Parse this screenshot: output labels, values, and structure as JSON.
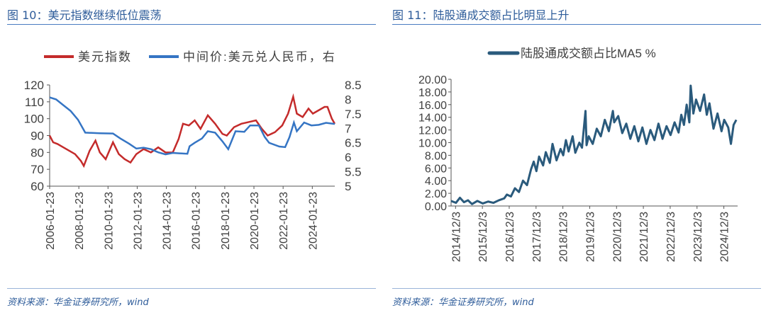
{
  "left": {
    "title": "图 10：美元指数继续低位震荡",
    "source": "资料来源：华金证券研究所，wind",
    "chart_data": {
      "type": "line",
      "title": "",
      "legend": {
        "placement": "top",
        "entries": [
          "美元指数",
          "中间价:美元兑人民币，右"
        ]
      },
      "x_ticks": [
        "2006-01-23",
        "2008-01-23",
        "2010-01-23",
        "2012-01-23",
        "2014-01-23",
        "2016-01-23",
        "2018-01-23",
        "2020-01-23",
        "2022-01-23",
        "2024-01-23"
      ],
      "y_left": {
        "lim": [
          60,
          120
        ],
        "ticks": [
          "60",
          "70",
          "80",
          "90",
          "100",
          "110",
          "120"
        ]
      },
      "y_right": {
        "lim": [
          5,
          8.5
        ],
        "ticks": [
          "5",
          "5.5",
          "6",
          "6.5",
          "7",
          "7.5",
          "8",
          "8.5"
        ]
      },
      "series": [
        {
          "name": "美元指数",
          "color": "#c42b2b",
          "axis": "left",
          "x": [
            2006.06,
            2006.3,
            2006.6,
            2007.0,
            2007.4,
            2007.8,
            2008.2,
            2008.4,
            2008.8,
            2009.2,
            2009.5,
            2009.9,
            2010.4,
            2010.8,
            2011.2,
            2011.6,
            2012.0,
            2012.5,
            2013.0,
            2013.5,
            2014.0,
            2014.5,
            2014.9,
            2015.2,
            2015.6,
            2016.0,
            2016.4,
            2016.9,
            2017.4,
            2017.9,
            2018.2,
            2018.7,
            2019.2,
            2019.7,
            2020.2,
            2020.6,
            2021.0,
            2021.5,
            2022.0,
            2022.4,
            2022.75,
            2023.0,
            2023.4,
            2023.8,
            2024.1,
            2024.5,
            2024.9,
            2025.1,
            2025.4,
            2025.6
          ],
          "y": [
            90,
            86,
            85,
            83,
            81,
            79,
            75,
            72,
            81,
            87,
            80,
            76,
            86,
            79,
            76,
            74,
            79,
            82,
            80,
            83,
            80,
            80,
            88,
            97,
            96,
            99,
            94,
            102,
            97,
            91,
            90,
            95,
            97,
            98,
            99,
            94,
            90,
            92,
            96,
            103,
            113,
            103,
            101,
            106,
            103,
            105,
            107,
            107,
            100,
            97
          ]
        },
        {
          "name": "中间价:美元兑人民币，右",
          "color": "#3575c4",
          "axis": "right",
          "x": [
            2006.06,
            2006.5,
            2007.0,
            2007.5,
            2008.0,
            2008.5,
            2009.5,
            2010.4,
            2010.9,
            2011.5,
            2012.0,
            2012.5,
            2013.0,
            2013.5,
            2014.0,
            2014.5,
            2015.5,
            2015.65,
            2016.0,
            2016.5,
            2016.9,
            2017.4,
            2017.9,
            2018.3,
            2018.8,
            2019.4,
            2019.8,
            2020.4,
            2020.8,
            2021.1,
            2021.8,
            2022.2,
            2022.5,
            2022.8,
            2023.0,
            2023.5,
            2024.0,
            2024.5,
            2025.0,
            2025.6
          ],
          "y": [
            8.07,
            8.0,
            7.8,
            7.6,
            7.3,
            6.85,
            6.83,
            6.82,
            6.65,
            6.47,
            6.3,
            6.33,
            6.28,
            6.17,
            6.1,
            6.15,
            6.12,
            6.38,
            6.5,
            6.65,
            6.9,
            6.85,
            6.55,
            6.28,
            6.9,
            6.88,
            7.1,
            7.1,
            6.7,
            6.5,
            6.37,
            6.35,
            6.7,
            7.2,
            6.9,
            7.2,
            7.1,
            7.12,
            7.19,
            7.15
          ]
        }
      ]
    }
  },
  "right": {
    "title": "图 11：陆股通成交额占比明显上升",
    "source": "资料来源：华金证券研究所，wind",
    "chart_data": {
      "type": "line",
      "title": "",
      "legend": {
        "placement": "top",
        "entries": [
          "陆股通成交额占比MA5 %"
        ]
      },
      "x_ticks": [
        "2014/12/3",
        "2015/12/3",
        "2016/12/3",
        "2017/12/3",
        "2018/12/3",
        "2019/12/3",
        "2020/12/3",
        "2021/12/3",
        "2022/12/3",
        "2023/12/3",
        "2024/12/3"
      ],
      "y": {
        "lim": [
          0,
          20
        ],
        "ticks": [
          "0.00",
          "2.00",
          "4.00",
          "6.00",
          "8.00",
          "10.00",
          "12.00",
          "14.00",
          "16.00",
          "18.00",
          "20.00"
        ]
      },
      "series": [
        {
          "name": "陆股通成交额占比MA5 %",
          "color": "#2a5a7c",
          "x": [
            2014.92,
            2015.1,
            2015.25,
            2015.4,
            2015.55,
            2015.7,
            2015.9,
            2016.1,
            2016.3,
            2016.5,
            2016.7,
            2016.9,
            2017.0,
            2017.15,
            2017.3,
            2017.45,
            2017.6,
            2017.75,
            2017.9,
            2018.0,
            2018.1,
            2018.2,
            2018.35,
            2018.45,
            2018.6,
            2018.7,
            2018.85,
            2019.0,
            2019.1,
            2019.2,
            2019.3,
            2019.45,
            2019.55,
            2019.7,
            2019.8,
            2019.93,
            2019.97,
            2020.05,
            2020.2,
            2020.35,
            2020.5,
            2020.65,
            2020.8,
            2020.95,
            2021.0,
            2021.15,
            2021.3,
            2021.45,
            2021.6,
            2021.75,
            2021.9,
            2022.05,
            2022.2,
            2022.35,
            2022.5,
            2022.65,
            2022.8,
            2022.95,
            2023.1,
            2023.25,
            2023.4,
            2023.5,
            2023.6,
            2023.7,
            2023.8,
            2023.85,
            2023.95,
            2024.05,
            2024.2,
            2024.35,
            2024.45,
            2024.55,
            2024.7,
            2024.85,
            2025.0,
            2025.1,
            2025.25,
            2025.35,
            2025.45,
            2025.55
          ],
          "y": [
            0.8,
            0.5,
            1.3,
            0.6,
            0.9,
            0.3,
            0.8,
            0.4,
            0.7,
            0.5,
            0.9,
            1.2,
            1.8,
            1.5,
            2.8,
            2.2,
            4.0,
            3.3,
            5.8,
            7.0,
            5.5,
            7.8,
            6.4,
            8.5,
            6.8,
            9.8,
            7.2,
            9.0,
            8.0,
            10.4,
            8.6,
            11.0,
            8.4,
            10.0,
            9.2,
            15.0,
            9.6,
            11.0,
            9.8,
            12.2,
            11.0,
            13.6,
            11.8,
            15.0,
            13.2,
            14.2,
            11.5,
            13.0,
            10.6,
            12.6,
            10.2,
            12.4,
            9.8,
            12.0,
            10.4,
            13.0,
            10.6,
            12.6,
            11.2,
            13.2,
            11.6,
            14.4,
            12.8,
            16.0,
            13.2,
            19.0,
            14.6,
            16.8,
            15.0,
            17.6,
            14.4,
            16.2,
            12.2,
            14.6,
            11.8,
            13.6,
            12.4,
            9.8,
            12.8,
            13.6
          ]
        }
      ]
    }
  }
}
